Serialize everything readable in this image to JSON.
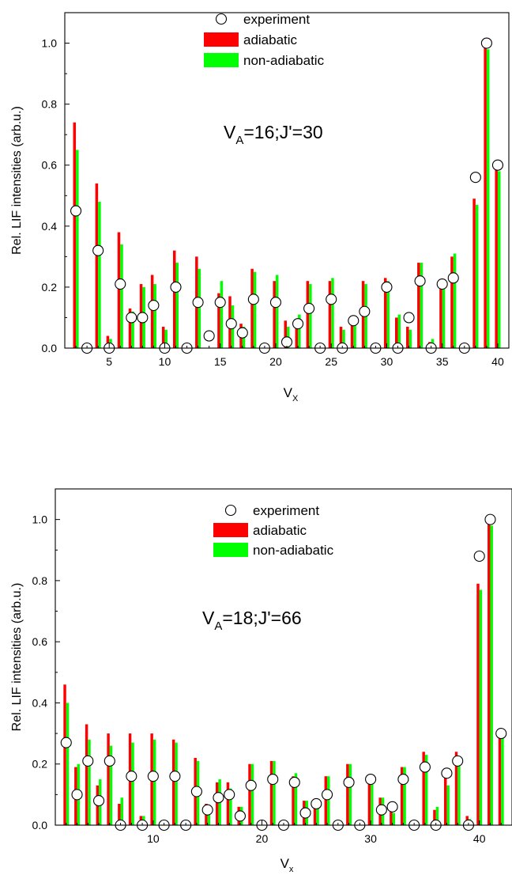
{
  "chart_data": [
    {
      "type": "bar",
      "annotation": {
        "main": "V",
        "sub": "A",
        "rest": "=16;J'=30"
      },
      "xlabel": {
        "main": "V",
        "sub": "X"
      },
      "ylabel": "Rel. LIF intensities (arb.u.)",
      "xlim": [
        1,
        41
      ],
      "ylim": [
        0,
        1.1
      ],
      "xticks": [
        5,
        10,
        15,
        20,
        25,
        30,
        35,
        40
      ],
      "yticks": [
        0.0,
        0.2,
        0.4,
        0.6,
        0.8,
        1.0
      ],
      "ytick_labels": [
        "0.0",
        "0.2",
        "0.4",
        "0.6",
        "0.8",
        "1.0"
      ],
      "grid": false,
      "legend_position": "top-center",
      "x": [
        2,
        3,
        4,
        5,
        6,
        7,
        8,
        9,
        10,
        11,
        12,
        13,
        14,
        15,
        16,
        17,
        18,
        19,
        20,
        21,
        22,
        23,
        24,
        25,
        26,
        27,
        28,
        29,
        30,
        31,
        32,
        33,
        34,
        35,
        36,
        37,
        38,
        39,
        40
      ],
      "series": [
        {
          "name": "experiment",
          "kind": "marker",
          "color": "#ffffff",
          "values": [
            0.45,
            0.0,
            0.32,
            0.0,
            0.21,
            0.1,
            0.1,
            0.14,
            0.0,
            0.2,
            0.0,
            0.15,
            0.04,
            0.15,
            0.08,
            0.05,
            0.16,
            0.0,
            0.15,
            0.02,
            0.08,
            0.13,
            0.0,
            0.16,
            0.0,
            0.09,
            0.12,
            0.0,
            0.2,
            0.0,
            0.1,
            0.22,
            0.0,
            0.21,
            0.23,
            0.0,
            0.56,
            1.0,
            0.6
          ]
        },
        {
          "name": "adiabatic",
          "kind": "bar",
          "color": "#ff0000",
          "values": [
            0.74,
            0.0,
            0.54,
            0.04,
            0.38,
            0.13,
            0.21,
            0.24,
            0.07,
            0.32,
            0.0,
            0.3,
            0.0,
            0.18,
            0.17,
            0.08,
            0.26,
            0.0,
            0.22,
            0.09,
            0.08,
            0.22,
            0.0,
            0.22,
            0.07,
            0.1,
            0.22,
            0.0,
            0.23,
            0.1,
            0.07,
            0.28,
            0.02,
            0.21,
            0.3,
            0.0,
            0.49,
            0.99,
            0.59
          ]
        },
        {
          "name": "non-adiabatic",
          "kind": "bar",
          "color": "#00ff00",
          "values": [
            0.65,
            0.0,
            0.48,
            0.03,
            0.34,
            0.12,
            0.2,
            0.21,
            0.06,
            0.28,
            0.0,
            0.26,
            0.0,
            0.22,
            0.14,
            0.07,
            0.25,
            0.0,
            0.24,
            0.07,
            0.11,
            0.21,
            0.0,
            0.23,
            0.06,
            0.1,
            0.21,
            0.0,
            0.22,
            0.11,
            0.06,
            0.28,
            0.03,
            0.2,
            0.31,
            0.0,
            0.47,
            0.98,
            0.58
          ]
        }
      ]
    },
    {
      "type": "bar",
      "annotation": {
        "main": "V",
        "sub": "A",
        "rest": "=18;J'=66"
      },
      "xlabel": {
        "main": "V",
        "sub": "x"
      },
      "ylabel": "Rel. LIF intensities (arb.u.)",
      "xlim": [
        1,
        43
      ],
      "ylim": [
        0,
        1.1
      ],
      "xticks": [
        10,
        20,
        30,
        40
      ],
      "yticks": [
        0.0,
        0.2,
        0.4,
        0.6,
        0.8,
        1.0
      ],
      "ytick_labels": [
        "0.0",
        "0.2",
        "0.4",
        "0.6",
        "0.8",
        "1.0"
      ],
      "grid": false,
      "legend_position": "top-center",
      "x": [
        2,
        3,
        4,
        5,
        6,
        7,
        8,
        9,
        10,
        11,
        12,
        13,
        14,
        15,
        16,
        17,
        18,
        19,
        20,
        21,
        22,
        23,
        24,
        25,
        26,
        27,
        28,
        29,
        30,
        31,
        32,
        33,
        34,
        35,
        36,
        37,
        38,
        39,
        40,
        41,
        42
      ],
      "series": [
        {
          "name": "experiment",
          "kind": "marker",
          "color": "#ffffff",
          "values": [
            0.27,
            0.1,
            0.21,
            0.08,
            0.21,
            0.0,
            0.16,
            0.0,
            0.16,
            0.0,
            0.16,
            0.0,
            0.11,
            0.05,
            0.09,
            0.1,
            0.03,
            0.13,
            0.0,
            0.15,
            0.0,
            0.14,
            0.04,
            0.07,
            0.1,
            0.0,
            0.14,
            0.0,
            0.15,
            0.05,
            0.06,
            0.15,
            0.0,
            0.19,
            0.0,
            0.17,
            0.21,
            0.0,
            0.88,
            1.0,
            0.3
          ]
        },
        {
          "name": "adiabatic",
          "kind": "bar",
          "color": "#ff0000",
          "values": [
            0.46,
            0.19,
            0.33,
            0.13,
            0.3,
            0.07,
            0.3,
            0.03,
            0.3,
            0.0,
            0.28,
            0.0,
            0.22,
            0.07,
            0.14,
            0.14,
            0.06,
            0.2,
            0.0,
            0.21,
            0.0,
            0.16,
            0.08,
            0.07,
            0.16,
            0.0,
            0.2,
            0.0,
            0.16,
            0.09,
            0.05,
            0.19,
            0.0,
            0.24,
            0.05,
            0.17,
            0.24,
            0.03,
            0.79,
            1.0,
            0.3
          ]
        },
        {
          "name": "non-adiabatic",
          "kind": "bar",
          "color": "#00ff00",
          "values": [
            0.4,
            0.2,
            0.28,
            0.15,
            0.26,
            0.09,
            0.27,
            0.03,
            0.28,
            0.0,
            0.27,
            0.0,
            0.21,
            0.06,
            0.15,
            0.12,
            0.06,
            0.2,
            0.0,
            0.21,
            0.0,
            0.17,
            0.08,
            0.06,
            0.16,
            0.0,
            0.2,
            0.0,
            0.15,
            0.09,
            0.04,
            0.19,
            0.0,
            0.23,
            0.06,
            0.13,
            0.2,
            0.02,
            0.77,
            0.98,
            0.29
          ]
        }
      ]
    }
  ]
}
